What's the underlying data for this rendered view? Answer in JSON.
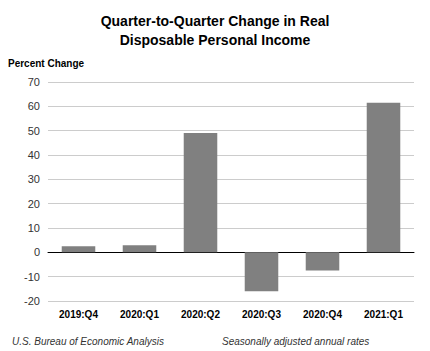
{
  "chart_data": {
    "type": "bar",
    "title": "Quarter-to-Quarter Change in Real\nDisposable Personal Income",
    "ylabel": "Percent Change",
    "annotations": [
      "U.S. Bureau of Economic Analysis",
      "Seasonally adjusted annual rates"
    ],
    "categories": [
      "2019:Q4",
      "2020:Q1",
      "2020:Q2",
      "2020:Q3",
      "2020:Q4",
      "2021:Q1"
    ],
    "values": [
      2.5,
      2.9,
      49.0,
      -16.0,
      -7.5,
      61.5
    ],
    "color": "#808080",
    "ylim": [
      -20,
      70
    ],
    "yticks": [
      -20,
      -10,
      0,
      10,
      20,
      30,
      40,
      50,
      60,
      70
    ],
    "grid": true
  }
}
